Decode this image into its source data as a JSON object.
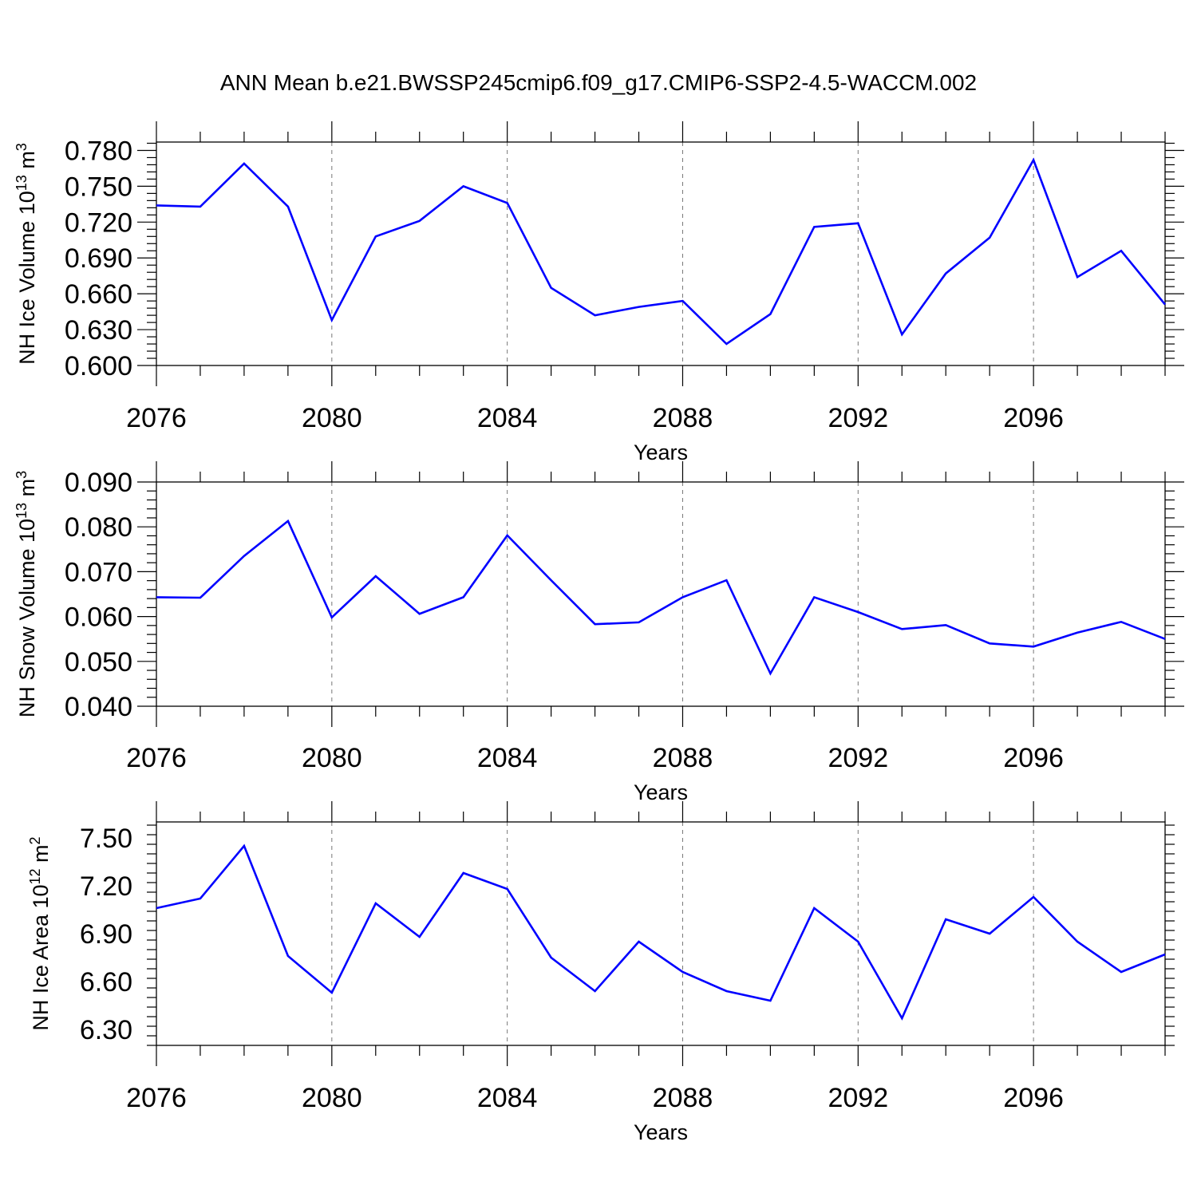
{
  "title": "ANN Mean b.e21.BWSSP245cmip6.f09_g17.CMIP6-SSP2-4.5-WACCM.002",
  "line_color": "#0000ff",
  "chart_data": [
    {
      "type": "line",
      "title": "",
      "xlabel": "Years",
      "ylabel_main": "NH Ice Volume 10",
      "ylabel_exp": "13",
      "ylabel_unit": " m",
      "ylabel_unit_exp": "3",
      "xlim": [
        2076,
        2099
      ],
      "ylim": [
        0.6,
        0.787
      ],
      "x_ticks": [
        2076,
        2080,
        2084,
        2088,
        2092,
        2096
      ],
      "x_tick_labels": [
        "2076",
        "2080",
        "2084",
        "2088",
        "2092",
        "2096"
      ],
      "y_ticks": [
        0.6,
        0.63,
        0.66,
        0.69,
        0.72,
        0.75,
        0.78
      ],
      "y_tick_labels": [
        "0.600",
        "0.630",
        "0.660",
        "0.690",
        "0.720",
        "0.750",
        "0.780"
      ],
      "grid": "vertical dashed at major x ticks",
      "x": [
        2076,
        2077,
        2078,
        2079,
        2080,
        2081,
        2082,
        2083,
        2084,
        2085,
        2086,
        2087,
        2088,
        2089,
        2090,
        2091,
        2092,
        2093,
        2094,
        2095,
        2096,
        2097,
        2098,
        2099
      ],
      "series": [
        {
          "values": [
            0.734,
            0.733,
            0.769,
            0.733,
            0.638,
            0.708,
            0.721,
            0.75,
            0.736,
            0.665,
            0.642,
            0.649,
            0.654,
            0.618,
            0.643,
            0.716,
            0.719,
            0.626,
            0.677,
            0.707,
            0.772,
            0.674,
            0.696,
            0.651
          ]
        }
      ]
    },
    {
      "type": "line",
      "title": "",
      "xlabel": "Years",
      "ylabel_main": "NH Snow Volume 10",
      "ylabel_exp": "13",
      "ylabel_unit": " m",
      "ylabel_unit_exp": "3",
      "xlim": [
        2076,
        2099
      ],
      "ylim": [
        0.04,
        0.09
      ],
      "x_ticks": [
        2076,
        2080,
        2084,
        2088,
        2092,
        2096
      ],
      "x_tick_labels": [
        "2076",
        "2080",
        "2084",
        "2088",
        "2092",
        "2096"
      ],
      "y_ticks": [
        0.04,
        0.05,
        0.06,
        0.07,
        0.08,
        0.09
      ],
      "y_tick_labels": [
        "0.040",
        "0.050",
        "0.060",
        "0.070",
        "0.080",
        "0.090"
      ],
      "grid": "vertical dashed at major x ticks",
      "x": [
        2076,
        2077,
        2078,
        2079,
        2080,
        2081,
        2082,
        2083,
        2084,
        2085,
        2086,
        2087,
        2088,
        2089,
        2090,
        2091,
        2092,
        2093,
        2094,
        2095,
        2096,
        2097,
        2098,
        2099
      ],
      "series": [
        {
          "values": [
            0.0643,
            0.0642,
            0.0735,
            0.0813,
            0.0598,
            0.069,
            0.0606,
            0.0643,
            0.0781,
            0.0681,
            0.0583,
            0.0587,
            0.0643,
            0.0681,
            0.0473,
            0.0643,
            0.061,
            0.0572,
            0.0581,
            0.054,
            0.0533,
            0.0564,
            0.0588,
            0.055
          ]
        }
      ]
    },
    {
      "type": "line",
      "title": "",
      "xlabel": "Years",
      "ylabel_main": "NH Ice Area 10",
      "ylabel_exp": "12",
      "ylabel_unit": " m",
      "ylabel_unit_exp": "2",
      "xlim": [
        2076,
        2099
      ],
      "ylim": [
        6.2,
        7.6
      ],
      "x_ticks": [
        2076,
        2080,
        2084,
        2088,
        2092,
        2096
      ],
      "x_tick_labels": [
        "2076",
        "2080",
        "2084",
        "2088",
        "2092",
        "2096"
      ],
      "y_ticks": [
        6.3,
        6.6,
        6.9,
        7.2,
        7.5
      ],
      "y_tick_labels": [
        "6.30",
        "6.60",
        "6.90",
        "7.20",
        "7.50"
      ],
      "grid": "vertical dashed at major x ticks",
      "x": [
        2076,
        2077,
        2078,
        2079,
        2080,
        2081,
        2082,
        2083,
        2084,
        2085,
        2086,
        2087,
        2088,
        2089,
        2090,
        2091,
        2092,
        2093,
        2094,
        2095,
        2096,
        2097,
        2098,
        2099
      ],
      "series": [
        {
          "values": [
            7.06,
            7.12,
            7.45,
            6.76,
            6.53,
            7.09,
            6.88,
            7.28,
            7.18,
            6.75,
            6.54,
            6.85,
            6.66,
            6.54,
            6.48,
            7.06,
            6.85,
            6.37,
            6.99,
            6.9,
            7.13,
            6.85,
            6.66,
            6.77
          ]
        }
      ]
    }
  ]
}
